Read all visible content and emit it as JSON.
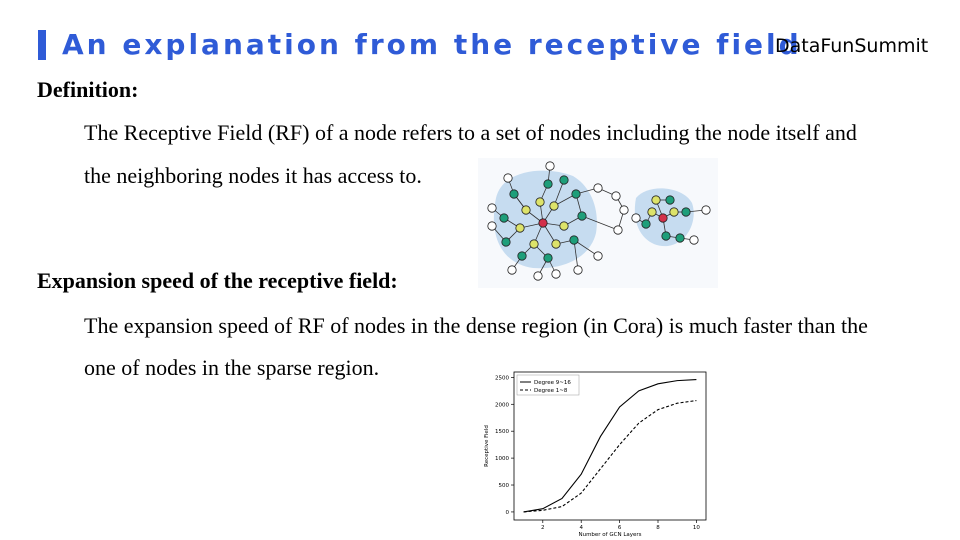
{
  "title": "An explanation from the receptive field",
  "brand": "DataFunSummit",
  "definition": {
    "heading": "Definition:",
    "line1": "The Receptive Field (RF) of a node refers to a set of nodes including the node itself and",
    "line2": "the neighboring nodes it has access to."
  },
  "expansion": {
    "heading": "Expansion speed of the receptive field:",
    "line1": "The expansion speed of RF of nodes in the dense region (in Cora) is much faster than the",
    "line2": "one of nodes in the sparse region."
  },
  "colors": {
    "title": "#2f5bd7",
    "region": "#c6dcf0",
    "center_node": "#d2304a",
    "hop1_node": "#dde36a",
    "hop2_node": "#1e9e7a",
    "outer_node": "#ffffff"
  },
  "chart_data": {
    "type": "line",
    "xlabel": "Number of GCN Layers",
    "ylabel": "Receptive Field",
    "xlim": [
      0.5,
      10.5
    ],
    "ylim": [
      -150,
      2600
    ],
    "xticks": [
      2,
      4,
      6,
      8,
      10
    ],
    "yticks": [
      0,
      500,
      1000,
      1500,
      2000,
      2500
    ],
    "legend_position": "top-left",
    "series": [
      {
        "name": "Degree 9~16",
        "style": "solid",
        "x": [
          1,
          2,
          3,
          4,
          5,
          6,
          7,
          8,
          9,
          10
        ],
        "y": [
          0,
          60,
          250,
          700,
          1400,
          1950,
          2250,
          2380,
          2440,
          2460
        ]
      },
      {
        "name": "Degree 1~8",
        "style": "dashed",
        "x": [
          1,
          2,
          3,
          4,
          5,
          6,
          7,
          8,
          9,
          10
        ],
        "y": [
          0,
          30,
          100,
          350,
          800,
          1250,
          1650,
          1900,
          2020,
          2070
        ]
      }
    ]
  }
}
